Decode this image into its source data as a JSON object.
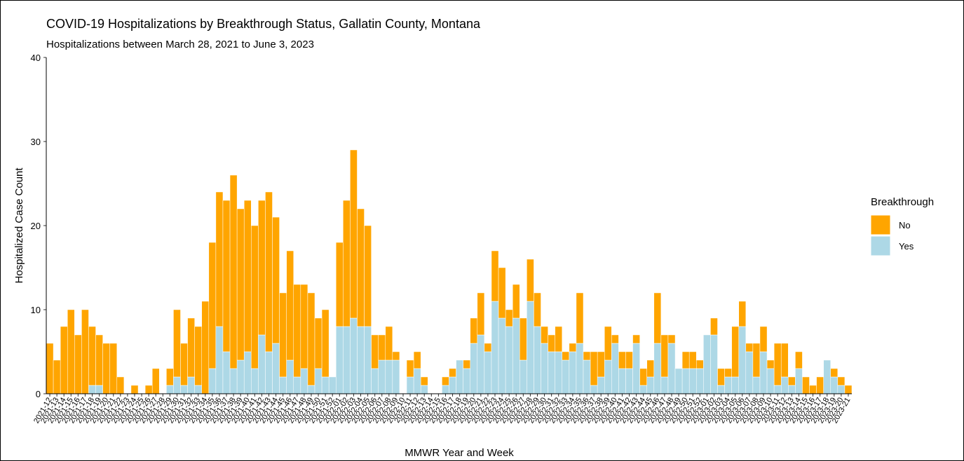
{
  "chart_data": {
    "type": "stacked_bar",
    "title": "COVID-19 Hospitalizations by Breakthrough Status, Gallatin County, Montana",
    "subtitle": "Hospitalizations between March 28, 2021 to June 3, 2023",
    "x_label": "MMWR Year and Week",
    "y_label": "Hospitalized Case Count",
    "legend_title": "Breakthrough",
    "legend_position": "right",
    "categories": [
      "2021-12",
      "2021-13",
      "2021-14",
      "2021-15",
      "2021-16",
      "2021-17",
      "2021-18",
      "2021-19",
      "2021-20",
      "2021-21",
      "2021-22",
      "2021-23",
      "2021-24",
      "2021-25",
      "2021-26",
      "2021-27",
      "2021-28",
      "2021-29",
      "2021-30",
      "2021-31",
      "2021-32",
      "2021-33",
      "2021-34",
      "2021-35",
      "2021-36",
      "2021-37",
      "2021-38",
      "2021-39",
      "2021-40",
      "2021-41",
      "2021-42",
      "2021-43",
      "2021-44",
      "2021-45",
      "2021-46",
      "2021-47",
      "2021-48",
      "2021-49",
      "2021-50",
      "2021-51",
      "2021-52",
      "2022-01",
      "2022-02",
      "2022-03",
      "2022-04",
      "2022-05",
      "2022-06",
      "2022-07",
      "2022-08",
      "2022-09",
      "2022-10",
      "2022-11",
      "2022-12",
      "2022-13",
      "2022-14",
      "2022-15",
      "2022-16",
      "2022-17",
      "2022-18",
      "2022-19",
      "2022-20",
      "2022-21",
      "2022-22",
      "2022-23",
      "2022-24",
      "2022-25",
      "2022-26",
      "2022-27",
      "2022-28",
      "2022-29",
      "2022-30",
      "2022-31",
      "2022-32",
      "2022-33",
      "2022-34",
      "2022-35",
      "2022-36",
      "2022-37",
      "2022-38",
      "2022-39",
      "2022-40",
      "2022-41",
      "2022-42",
      "2022-43",
      "2022-44",
      "2022-45",
      "2022-46",
      "2022-47",
      "2022-48",
      "2022-49",
      "2022-50",
      "2022-51",
      "2022-52",
      "2023-01",
      "2023-02",
      "2023-03",
      "2023-04",
      "2023-05",
      "2023-06",
      "2023-07",
      "2023-08",
      "2023-09",
      "2023-10",
      "2023-11",
      "2023-12",
      "2023-13",
      "2023-14",
      "2023-15",
      "2023-16",
      "2023-17",
      "2023-18",
      "2023-19",
      "2023-20",
      "2023-21"
    ],
    "series": [
      {
        "name": "No",
        "color": "#ffa500",
        "values": [
          6,
          4,
          8,
          10,
          7,
          10,
          7,
          6,
          6,
          6,
          2,
          0,
          1,
          0,
          1,
          3,
          0,
          2,
          8,
          5,
          7,
          7,
          11,
          15,
          16,
          18,
          23,
          18,
          18,
          17,
          16,
          19,
          15,
          10,
          13,
          11,
          10,
          11,
          6,
          8,
          0,
          10,
          15,
          20,
          14,
          12,
          4,
          3,
          4,
          1,
          0,
          2,
          2,
          1,
          0,
          0,
          1,
          1,
          0,
          1,
          3,
          5,
          1,
          6,
          6,
          2,
          4,
          5,
          5,
          4,
          2,
          2,
          3,
          1,
          1,
          6,
          1,
          4,
          3,
          4,
          1,
          2,
          2,
          1,
          2,
          2,
          6,
          5,
          1,
          0,
          2,
          2,
          1,
          0,
          2,
          2,
          1,
          6,
          3,
          1,
          4,
          3,
          1,
          5,
          4,
          1,
          2,
          2,
          1,
          2,
          0,
          1,
          1,
          1
        ]
      },
      {
        "name": "Yes",
        "color": "#add8e6",
        "values": [
          0,
          0,
          0,
          0,
          0,
          0,
          1,
          1,
          0,
          0,
          0,
          0,
          0,
          0,
          0,
          0,
          0,
          1,
          2,
          1,
          2,
          1,
          0,
          3,
          8,
          5,
          3,
          4,
          5,
          3,
          7,
          5,
          6,
          2,
          4,
          2,
          3,
          1,
          3,
          2,
          2,
          8,
          8,
          9,
          8,
          8,
          3,
          4,
          4,
          4,
          0,
          2,
          3,
          1,
          0,
          0,
          1,
          2,
          4,
          3,
          6,
          7,
          5,
          11,
          9,
          8,
          9,
          4,
          11,
          8,
          6,
          5,
          5,
          4,
          5,
          6,
          4,
          1,
          2,
          4,
          6,
          3,
          3,
          6,
          1,
          2,
          6,
          2,
          6,
          3,
          3,
          3,
          3,
          7,
          7,
          1,
          2,
          2,
          8,
          5,
          2,
          5,
          3,
          1,
          2,
          1,
          3,
          0,
          0,
          0,
          4,
          2,
          1,
          0
        ]
      }
    ],
    "ylim": [
      0,
      40
    ],
    "yticks": [
      0,
      10,
      20,
      30,
      40
    ],
    "grid": false
  }
}
